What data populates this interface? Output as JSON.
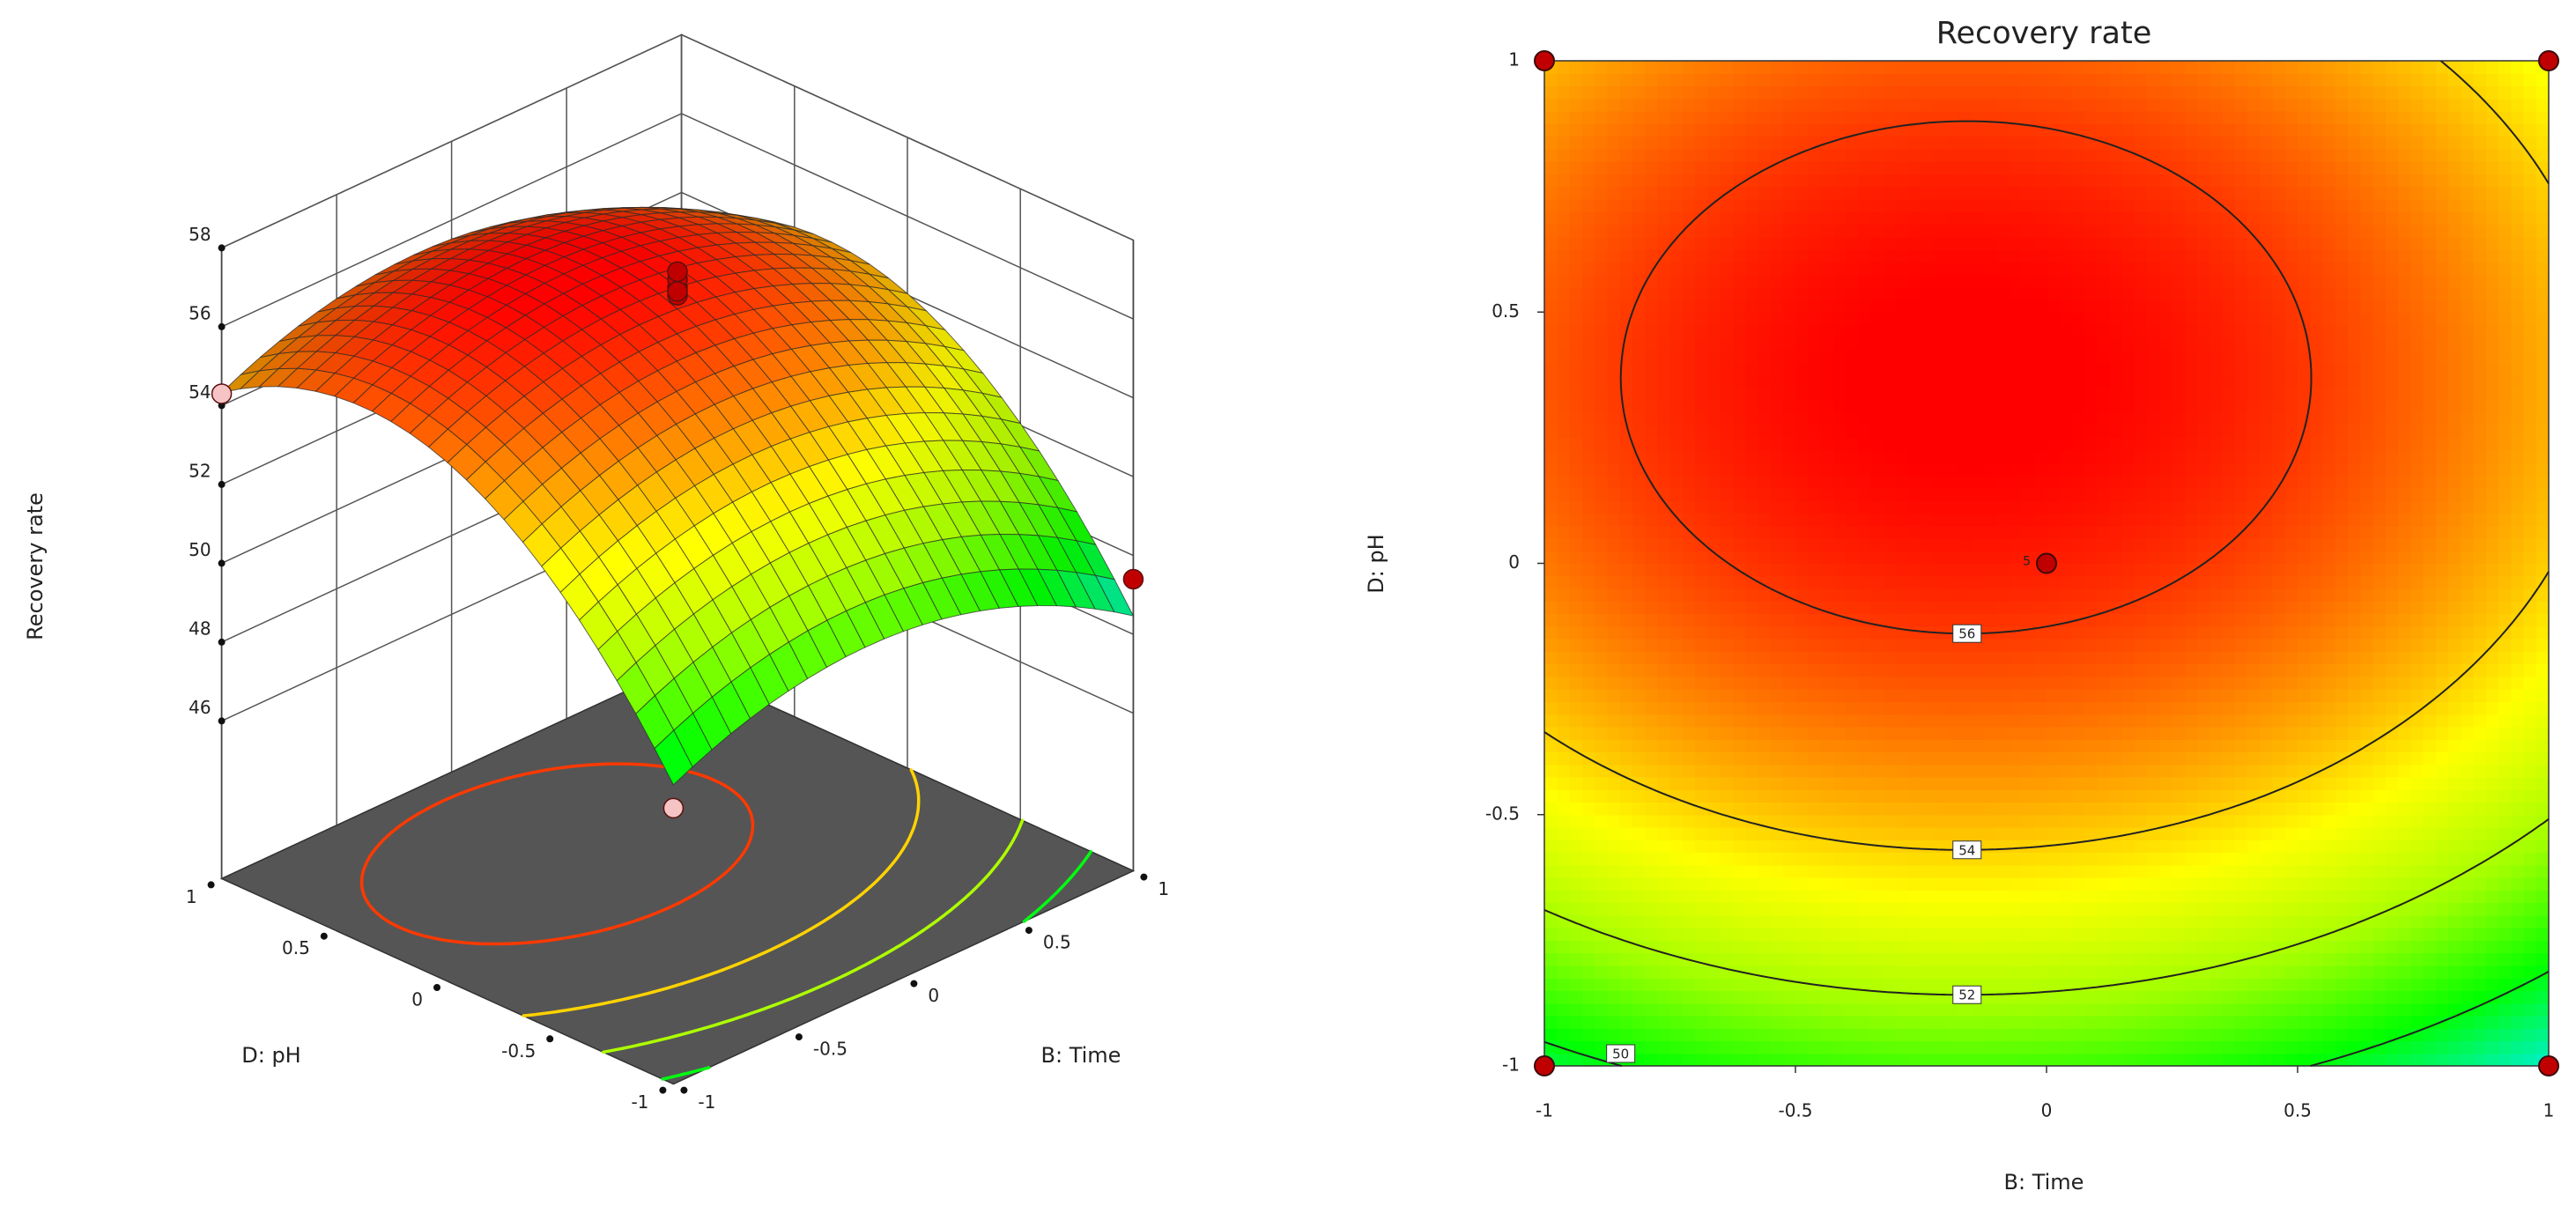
{
  "chart_data": [
    {
      "type": "surface3d",
      "zlabel": "Recovery rate",
      "xlabel": "B: Time",
      "ylabel": "D: pH",
      "x": [
        -1,
        -0.5,
        0,
        0.5,
        1
      ],
      "y": [
        -1,
        -0.5,
        0,
        0.5,
        1
      ],
      "z": [
        [
          49.59,
          50.62,
          50.78,
          50.06,
          48.47
        ],
        [
          53.17,
          54.21,
          54.36,
          53.65,
          52.05
        ],
        [
          55.16,
          56.19,
          56.35,
          55.63,
          54.04
        ],
        [
          55.54,
          56.57,
          56.73,
          56.01,
          54.42
        ],
        [
          54.33,
          55.36,
          55.52,
          54.8,
          53.21
        ]
      ],
      "xlim": [
        -1,
        1
      ],
      "ylim": [
        -1,
        1
      ],
      "zlim": [
        42,
        58
      ],
      "xticks": [
        -1,
        -0.5,
        0,
        0.5,
        1
      ],
      "yticks": [
        -1,
        -0.5,
        0,
        0.5,
        1
      ],
      "zticks": [
        46,
        48,
        50,
        52,
        54,
        56,
        58
      ],
      "colormap": [
        "#00f0d0",
        "#00ff00",
        "#a0ff00",
        "#ffff00",
        "#ff8000",
        "#ff0000"
      ],
      "floor_color": "#555555",
      "contour_levels": [
        48,
        50,
        52,
        54,
        56
      ],
      "grid": true,
      "points": {
        "x": [
          -1,
          1,
          -1,
          1,
          0,
          0,
          0,
          0,
          0
        ],
        "y": [
          1,
          1,
          -1,
          -1,
          0,
          0,
          0,
          0,
          0
        ],
        "z": [
          54.3,
          53.3,
          49.0,
          49.4,
          56.7,
          56.9,
          57.1,
          57.3,
          56.8
        ]
      },
      "point_colors": {
        "above": "#c00000",
        "below": "#f6c4c4"
      }
    },
    {
      "type": "contour",
      "title": "Recovery rate",
      "xlabel": "B: Time",
      "ylabel": "D: pH",
      "x": [
        -1,
        -0.5,
        0,
        0.5,
        1
      ],
      "y": [
        -1,
        -0.5,
        0,
        0.5,
        1
      ],
      "z": [
        [
          49.59,
          50.62,
          50.78,
          50.06,
          48.47
        ],
        [
          53.17,
          54.21,
          54.36,
          53.65,
          52.05
        ],
        [
          55.16,
          56.19,
          56.35,
          55.63,
          54.04
        ],
        [
          55.54,
          56.57,
          56.73,
          56.01,
          54.42
        ],
        [
          54.33,
          55.36,
          55.52,
          54.8,
          53.21
        ]
      ],
      "xlim": [
        -1,
        1
      ],
      "ylim": [
        -1,
        1
      ],
      "xticks": [
        -1,
        -0.5,
        0,
        0.5,
        1
      ],
      "yticks": [
        -1,
        -0.5,
        0,
        0.5,
        1
      ],
      "contour_levels": [
        50,
        52,
        54,
        56
      ],
      "colormap": [
        "#00f0d0",
        "#00ff00",
        "#a0ff00",
        "#ffff00",
        "#ff8000",
        "#ff0000"
      ],
      "line_color": "#222222",
      "points": {
        "x": [
          -1,
          1,
          -1,
          1,
          0
        ],
        "y": [
          1,
          1,
          -1,
          -1,
          0
        ],
        "labels": [
          null,
          null,
          null,
          null,
          "5"
        ]
      },
      "point_color": "#c00000"
    }
  ]
}
